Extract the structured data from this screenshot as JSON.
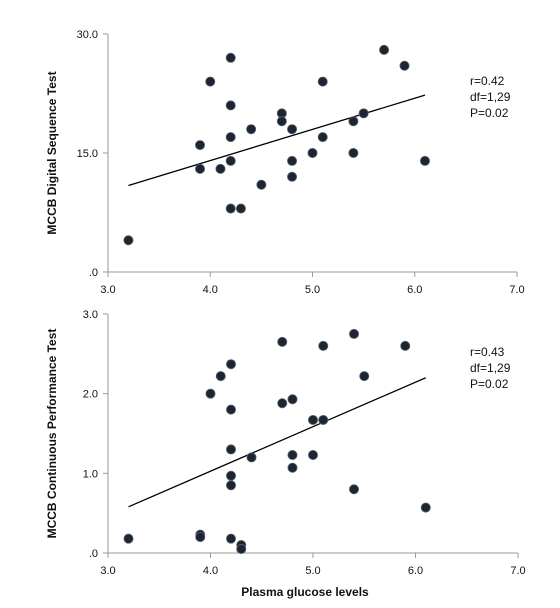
{
  "chart_data": [
    {
      "type": "scatter",
      "ylabel": "MCCB Digital Sequence Test",
      "xlabel": "",
      "xlim": [
        3.0,
        7.0
      ],
      "ylim": [
        0,
        30
      ],
      "x_ticks": [
        "3.0",
        "4.0",
        "5.0",
        "6.0",
        "7.0"
      ],
      "y_ticks": [
        ".0",
        "15.0",
        "30.0"
      ],
      "y_tick_values": [
        0,
        15,
        30
      ],
      "points": [
        [
          3.2,
          4
        ],
        [
          3.9,
          16
        ],
        [
          3.9,
          13
        ],
        [
          4.0,
          24
        ],
        [
          4.1,
          13
        ],
        [
          4.2,
          27
        ],
        [
          4.2,
          21
        ],
        [
          4.2,
          17
        ],
        [
          4.2,
          14
        ],
        [
          4.2,
          8
        ],
        [
          4.3,
          8
        ],
        [
          4.4,
          18
        ],
        [
          4.5,
          11
        ],
        [
          4.7,
          20
        ],
        [
          4.7,
          19
        ],
        [
          4.8,
          18
        ],
        [
          4.8,
          14
        ],
        [
          4.8,
          12
        ],
        [
          5.0,
          15
        ],
        [
          5.1,
          24
        ],
        [
          5.1,
          17
        ],
        [
          5.4,
          19
        ],
        [
          5.4,
          15
        ],
        [
          5.5,
          20
        ],
        [
          5.7,
          28
        ],
        [
          5.9,
          26
        ],
        [
          6.1,
          14
        ]
      ],
      "trendline": {
        "x": [
          3.2,
          6.1
        ],
        "y": [
          10.9,
          22.3
        ]
      },
      "annotations": [
        "r=0.42",
        "df=1,29",
        "P=0.02"
      ],
      "grid": false
    },
    {
      "type": "scatter",
      "ylabel": "MCCB Continuous Performance  Test",
      "xlabel": "Plasma glucose levels",
      "xlim": [
        3.0,
        7.0
      ],
      "ylim": [
        0,
        3.0
      ],
      "x_ticks": [
        "3.0",
        "4.0",
        "5.0",
        "6.0",
        "7.0"
      ],
      "y_ticks": [
        ".0",
        "1.0",
        "2.0",
        "3.0"
      ],
      "y_tick_values": [
        0,
        1,
        2,
        3
      ],
      "points": [
        [
          3.2,
          0.18
        ],
        [
          3.9,
          0.23
        ],
        [
          3.9,
          0.2
        ],
        [
          4.0,
          2.0
        ],
        [
          4.1,
          2.22
        ],
        [
          4.2,
          2.37
        ],
        [
          4.2,
          1.8
        ],
        [
          4.2,
          1.3
        ],
        [
          4.2,
          0.97
        ],
        [
          4.2,
          0.85
        ],
        [
          4.2,
          0.18
        ],
        [
          4.3,
          0.1
        ],
        [
          4.3,
          0.05
        ],
        [
          4.4,
          1.2
        ],
        [
          4.7,
          2.65
        ],
        [
          4.7,
          1.88
        ],
        [
          4.8,
          1.93
        ],
        [
          4.8,
          1.23
        ],
        [
          4.8,
          1.07
        ],
        [
          5.0,
          1.67
        ],
        [
          5.0,
          1.23
        ],
        [
          5.1,
          2.6
        ],
        [
          5.1,
          1.67
        ],
        [
          5.4,
          2.75
        ],
        [
          5.4,
          0.8
        ],
        [
          5.5,
          2.22
        ],
        [
          5.9,
          2.6
        ],
        [
          6.1,
          0.57
        ]
      ],
      "trendline": {
        "x": [
          3.2,
          6.1
        ],
        "y": [
          0.58,
          2.2
        ]
      },
      "annotations": [
        "r=0.43",
        "df=1,29",
        "P=0.02"
      ],
      "grid": false
    }
  ]
}
